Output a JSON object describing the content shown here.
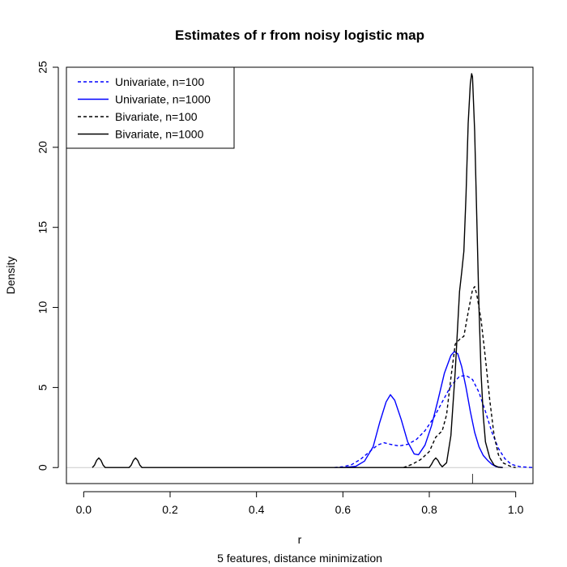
{
  "chart_data": {
    "type": "line",
    "title": "Estimates of r from noisy logistic map",
    "xlabel": "r",
    "subtitle": "5 features, distance minimization",
    "ylabel": "Density",
    "xlim": [
      -0.04,
      1.04
    ],
    "ylim": [
      -1,
      25
    ],
    "x_ticks": [
      0.0,
      0.2,
      0.4,
      0.6,
      0.8,
      1.0
    ],
    "x_tick_labels": [
      "0.0",
      "0.2",
      "0.4",
      "0.6",
      "0.8",
      "1.0"
    ],
    "y_ticks": [
      0,
      5,
      10,
      15,
      20,
      25
    ],
    "y_tick_labels": [
      "0",
      "5",
      "10",
      "15",
      "20",
      "25"
    ],
    "grid": false,
    "legend_position": "top-left",
    "baseline_color": "#cccccc",
    "series": [
      {
        "name": "Univariate, n=100",
        "color": "#0000ff",
        "line_style": "dashed",
        "points": [
          [
            0.58,
            0
          ],
          [
            0.6,
            0.05
          ],
          [
            0.62,
            0.18
          ],
          [
            0.64,
            0.5
          ],
          [
            0.66,
            0.95
          ],
          [
            0.68,
            1.4
          ],
          [
            0.695,
            1.55
          ],
          [
            0.71,
            1.45
          ],
          [
            0.73,
            1.35
          ],
          [
            0.75,
            1.45
          ],
          [
            0.77,
            1.75
          ],
          [
            0.79,
            2.3
          ],
          [
            0.81,
            3.1
          ],
          [
            0.83,
            4.1
          ],
          [
            0.85,
            5.1
          ],
          [
            0.87,
            5.7
          ],
          [
            0.885,
            5.75
          ],
          [
            0.9,
            5.5
          ],
          [
            0.915,
            4.7
          ],
          [
            0.93,
            3.5
          ],
          [
            0.945,
            2.2
          ],
          [
            0.96,
            1.2
          ],
          [
            0.975,
            0.55
          ],
          [
            0.99,
            0.2
          ],
          [
            1.01,
            0.05
          ],
          [
            1.04,
            0
          ]
        ]
      },
      {
        "name": "Univariate, n=1000",
        "color": "#0000ff",
        "line_style": "solid",
        "points": [
          [
            0.6,
            0
          ],
          [
            0.63,
            0.08
          ],
          [
            0.65,
            0.4
          ],
          [
            0.67,
            1.3
          ],
          [
            0.685,
            2.8
          ],
          [
            0.7,
            4.1
          ],
          [
            0.71,
            4.55
          ],
          [
            0.72,
            4.2
          ],
          [
            0.735,
            3.0
          ],
          [
            0.75,
            1.6
          ],
          [
            0.765,
            0.85
          ],
          [
            0.775,
            0.8
          ],
          [
            0.79,
            1.4
          ],
          [
            0.805,
            2.6
          ],
          [
            0.82,
            4.2
          ],
          [
            0.835,
            5.9
          ],
          [
            0.85,
            7.0
          ],
          [
            0.858,
            7.25
          ],
          [
            0.866,
            7.1
          ],
          [
            0.875,
            6.3
          ],
          [
            0.885,
            5.0
          ],
          [
            0.895,
            3.5
          ],
          [
            0.905,
            2.2
          ],
          [
            0.915,
            1.3
          ],
          [
            0.925,
            0.75
          ],
          [
            0.935,
            0.45
          ],
          [
            0.945,
            0.2
          ],
          [
            0.955,
            0.05
          ],
          [
            0.97,
            0
          ]
        ]
      },
      {
        "name": "Bivariate, n=100",
        "color": "#000000",
        "line_style": "dashed",
        "points": [
          [
            0.74,
            0
          ],
          [
            0.76,
            0.2
          ],
          [
            0.78,
            0.5
          ],
          [
            0.8,
            1.0
          ],
          [
            0.815,
            1.9
          ],
          [
            0.83,
            2.3
          ],
          [
            0.84,
            3.3
          ],
          [
            0.85,
            5.6
          ],
          [
            0.86,
            7.7
          ],
          [
            0.87,
            8.0
          ],
          [
            0.88,
            8.2
          ],
          [
            0.89,
            9.7
          ],
          [
            0.9,
            11.1
          ],
          [
            0.905,
            11.3
          ],
          [
            0.91,
            10.8
          ],
          [
            0.92,
            9.2
          ],
          [
            0.93,
            6.8
          ],
          [
            0.94,
            4.2
          ],
          [
            0.95,
            2.0
          ],
          [
            0.96,
            0.8
          ],
          [
            0.97,
            0.3
          ],
          [
            0.99,
            0.05
          ],
          [
            1.0,
            0
          ]
        ]
      },
      {
        "name": "Bivariate, n=1000",
        "color": "#000000",
        "line_style": "solid",
        "points": [
          [
            0.02,
            0
          ],
          [
            0.025,
            0.15
          ],
          [
            0.03,
            0.45
          ],
          [
            0.035,
            0.6
          ],
          [
            0.04,
            0.45
          ],
          [
            0.045,
            0.15
          ],
          [
            0.05,
            0
          ],
          [
            0.105,
            0
          ],
          [
            0.11,
            0.15
          ],
          [
            0.115,
            0.45
          ],
          [
            0.12,
            0.6
          ],
          [
            0.125,
            0.45
          ],
          [
            0.13,
            0.15
          ],
          [
            0.135,
            0
          ],
          [
            0.8,
            0
          ],
          [
            0.805,
            0.2
          ],
          [
            0.81,
            0.45
          ],
          [
            0.815,
            0.6
          ],
          [
            0.82,
            0.45
          ],
          [
            0.825,
            0.2
          ],
          [
            0.83,
            0.05
          ],
          [
            0.84,
            0.3
          ],
          [
            0.85,
            2.0
          ],
          [
            0.86,
            6.0
          ],
          [
            0.87,
            11.0
          ],
          [
            0.875,
            12.2
          ],
          [
            0.88,
            13.5
          ],
          [
            0.885,
            17.0
          ],
          [
            0.89,
            21.5
          ],
          [
            0.895,
            24.0
          ],
          [
            0.898,
            24.6
          ],
          [
            0.9,
            24.4
          ],
          [
            0.905,
            21.0
          ],
          [
            0.91,
            15.5
          ],
          [
            0.915,
            10.0
          ],
          [
            0.92,
            5.8
          ],
          [
            0.925,
            3.2
          ],
          [
            0.93,
            1.6
          ],
          [
            0.94,
            0.6
          ],
          [
            0.95,
            0.15
          ],
          [
            0.96,
            0.02
          ],
          [
            0.97,
            0
          ]
        ]
      }
    ]
  }
}
